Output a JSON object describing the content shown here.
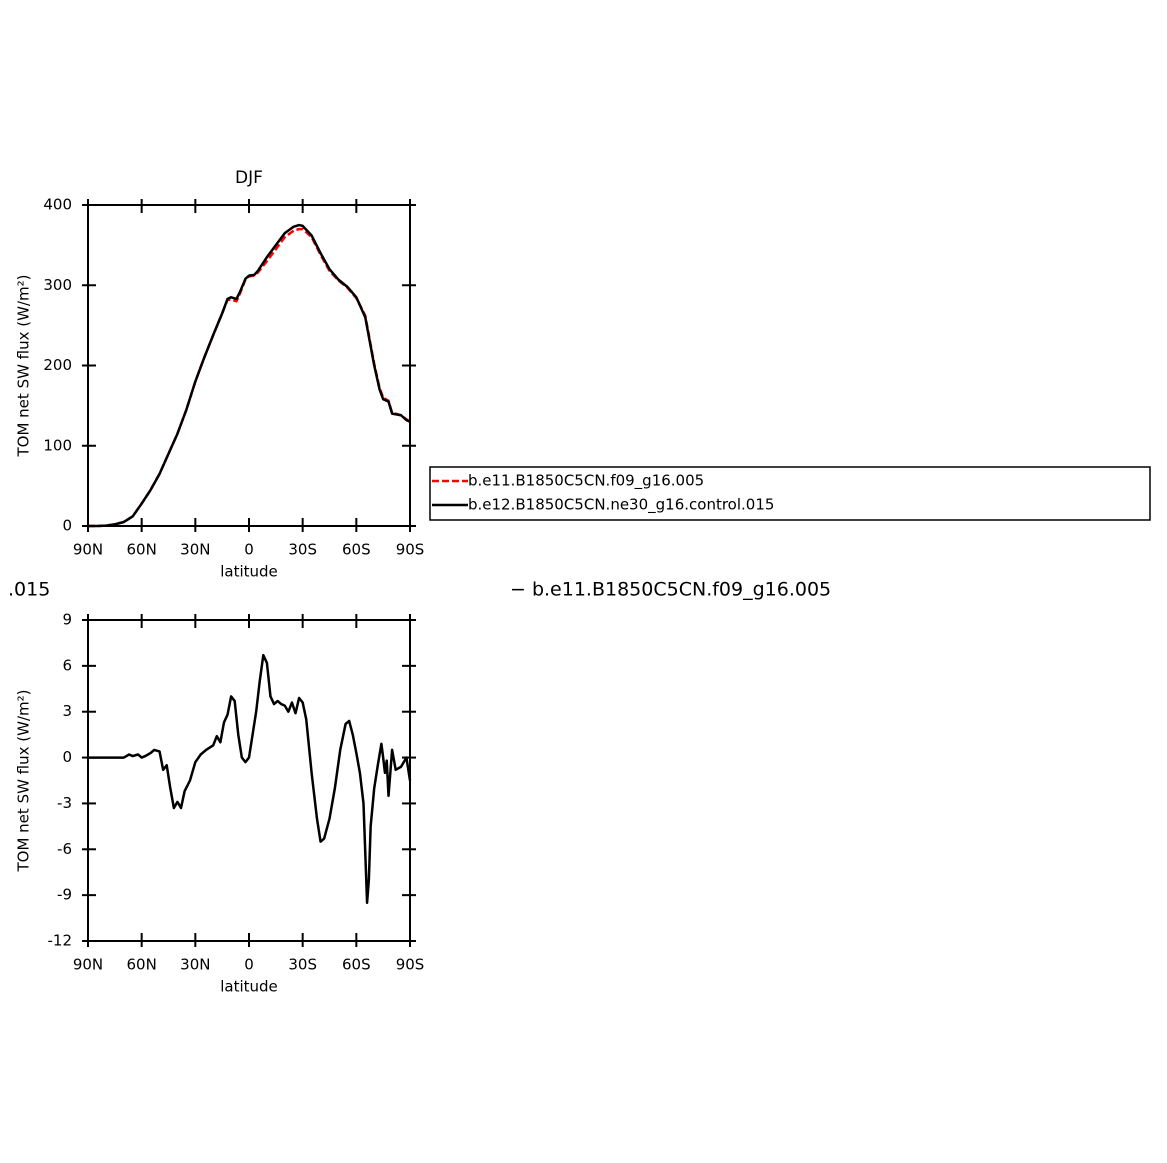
{
  "chart_data": [
    {
      "type": "line",
      "title": "DJF",
      "xlabel": "latitude",
      "ylabel": "TOM net SW flux (W/m²)",
      "x": [
        90,
        85,
        80,
        75,
        70,
        65,
        60,
        55,
        50,
        45,
        40,
        35,
        30,
        25,
        20,
        15,
        12,
        10,
        7,
        5,
        2,
        0,
        -3,
        -5,
        -10,
        -15,
        -20,
        -25,
        -28,
        -30,
        -35,
        -40,
        -45,
        -50,
        -55,
        -60,
        -65,
        -70,
        -73,
        -75,
        -78,
        -80,
        -85,
        -88,
        -90
      ],
      "series": [
        {
          "name": "b.e11.B1850C5CN.f09_g16.005",
          "color": "#ff0000",
          "dash": "dashed",
          "values": [
            0,
            0,
            0.5,
            2,
            5,
            12,
            28,
            45,
            65,
            90,
            115,
            145,
            180,
            210,
            238,
            265,
            282,
            282,
            280,
            290,
            307,
            311,
            312,
            316,
            330,
            345,
            360,
            368,
            370,
            370,
            360,
            338,
            318,
            306,
            297,
            284,
            262,
            202,
            172,
            160,
            156,
            141,
            138,
            133,
            130
          ]
        },
        {
          "name": "b.e12.B1850C5CN.ne30_g16.control.015",
          "color": "#000000",
          "dash": "solid",
          "values": [
            0,
            0,
            0.5,
            2,
            5,
            12,
            28,
            45,
            65,
            90,
            115,
            145,
            180,
            210,
            238,
            265,
            283,
            285,
            283,
            292,
            308,
            312,
            313,
            318,
            335,
            350,
            365,
            373,
            375,
            374,
            362,
            340,
            320,
            307,
            298,
            285,
            260,
            200,
            170,
            158,
            155,
            140,
            138,
            132,
            130
          ]
        }
      ],
      "xlim": [
        90,
        -90
      ],
      "ylim": [
        0,
        400
      ],
      "xticks": [
        {
          "value": 90,
          "label": "90N"
        },
        {
          "value": 60,
          "label": "60N"
        },
        {
          "value": 30,
          "label": "30N"
        },
        0,
        {
          "value": -30,
          "label": "30S"
        },
        {
          "value": -60,
          "label": "60S"
        },
        {
          "value": -90,
          "label": "90S"
        }
      ],
      "yticks": [
        0,
        100,
        200,
        300,
        400
      ],
      "legend": "outside-right"
    },
    {
      "type": "line",
      "xlabel": "latitude",
      "ylabel": "TOM net SW flux (W/m²)",
      "annotations": [
        ".015",
        "− b.e11.B1850C5CN.f09_g16.005"
      ],
      "x": [
        90,
        80,
        70,
        67,
        65,
        62,
        60,
        58,
        55,
        53,
        50,
        48,
        46,
        44,
        42,
        40,
        38,
        36,
        33,
        30,
        27,
        24,
        20,
        18,
        16,
        14,
        12,
        10,
        8,
        6,
        4,
        2,
        0,
        -2,
        -4,
        -6,
        -8,
        -10,
        -12,
        -14,
        -16,
        -18,
        -20,
        -22,
        -24,
        -26,
        -28,
        -30,
        -32,
        -35,
        -38,
        -40,
        -42,
        -45,
        -48,
        -51,
        -54,
        -56,
        -58,
        -60,
        -62,
        -64,
        -66,
        -67,
        -68,
        -70,
        -72,
        -74,
        -75,
        -76,
        -77,
        -78,
        -80,
        -82,
        -85,
        -88,
        -90
      ],
      "series": [
        {
          "color": "#000000",
          "dash": "solid",
          "values": [
            0,
            0,
            0,
            0.2,
            0.1,
            0.2,
            0,
            0.1,
            0.3,
            0.5,
            0.4,
            -0.8,
            -0.5,
            -2,
            -3.3,
            -2.9,
            -3.3,
            -2.2,
            -1.5,
            -0.3,
            0.2,
            0.5,
            0.8,
            1.4,
            1,
            2.3,
            2.8,
            4,
            3.7,
            1.5,
            0,
            -0.3,
            0,
            1.5,
            3,
            5,
            6.7,
            6.2,
            4,
            3.5,
            3.7,
            3.5,
            3.4,
            3,
            3.6,
            2.9,
            3.9,
            3.6,
            2.5,
            -1,
            -4,
            -5.5,
            -5.3,
            -4,
            -2,
            0.5,
            2.2,
            2.4,
            1.5,
            0.3,
            -1,
            -3,
            -9.5,
            -8,
            -4.5,
            -2,
            -0.5,
            0.9,
            0,
            -1,
            -0.2,
            -2.5,
            0.5,
            -0.8,
            -0.6,
            0,
            -1.5
          ]
        }
      ],
      "xlim": [
        90,
        -90
      ],
      "ylim": [
        -12,
        9
      ],
      "xticks": [
        {
          "value": 90,
          "label": "90N"
        },
        {
          "value": 60,
          "label": "60N"
        },
        {
          "value": 30,
          "label": "30N"
        },
        0,
        {
          "value": -30,
          "label": "30S"
        },
        {
          "value": -60,
          "label": "60S"
        },
        {
          "value": -90,
          "label": "90S"
        }
      ],
      "yticks": [
        -12,
        -9,
        -6,
        -3,
        0,
        3,
        6,
        9
      ]
    }
  ]
}
